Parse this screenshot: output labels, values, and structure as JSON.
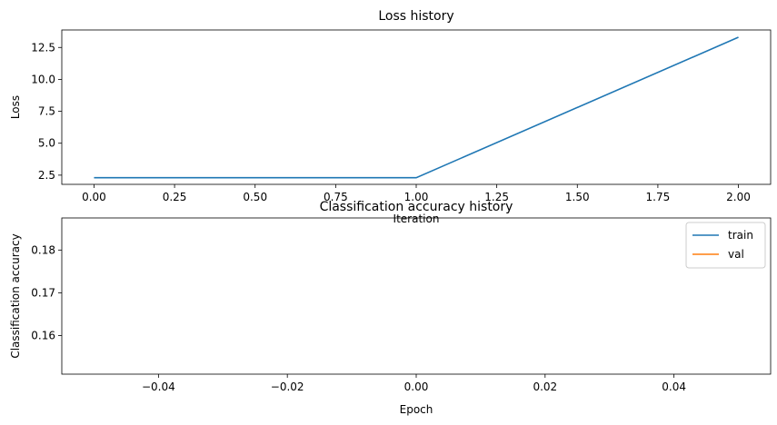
{
  "chart_data": [
    {
      "type": "line",
      "title": "Loss history",
      "xlabel": "Iteration",
      "ylabel": "Loss",
      "xlim": [
        -0.1,
        2.1
      ],
      "ylim": [
        1.78,
        13.87
      ],
      "xticks": [
        0.0,
        0.25,
        0.5,
        0.75,
        1.0,
        1.25,
        1.5,
        1.75,
        2.0
      ],
      "xtick_labels": [
        "0.00",
        "0.25",
        "0.50",
        "0.75",
        "1.00",
        "1.25",
        "1.50",
        "1.75",
        "2.00"
      ],
      "yticks": [
        2.5,
        5.0,
        7.5,
        10.0,
        12.5
      ],
      "ytick_labels": [
        "2.5",
        "5.0",
        "7.5",
        "10.0",
        "12.5"
      ],
      "grid": false,
      "series": [
        {
          "color": "#1f77b4",
          "x": [
            0,
            1,
            2
          ],
          "values": [
            2.3,
            2.3,
            13.3
          ]
        }
      ]
    },
    {
      "type": "line",
      "title": "Classification accuracy history",
      "xlabel": "Epoch",
      "ylabel": "Classification accuracy",
      "xlim": [
        -0.055,
        0.055
      ],
      "ylim": [
        0.151,
        0.1875
      ],
      "xticks": [
        -0.04,
        -0.02,
        0.0,
        0.02,
        0.04
      ],
      "xtick_labels": [
        "−0.04",
        "−0.02",
        "0.00",
        "0.02",
        "0.04"
      ],
      "yticks": [
        0.16,
        0.17,
        0.18
      ],
      "ytick_labels": [
        "0.16",
        "0.17",
        "0.18"
      ],
      "grid": false,
      "legend": "top-right",
      "series": [
        {
          "name": "train",
          "color": "#1f77b4",
          "x": [],
          "values": []
        },
        {
          "name": "val",
          "color": "#ff7f0e",
          "x": [],
          "values": []
        }
      ]
    }
  ]
}
